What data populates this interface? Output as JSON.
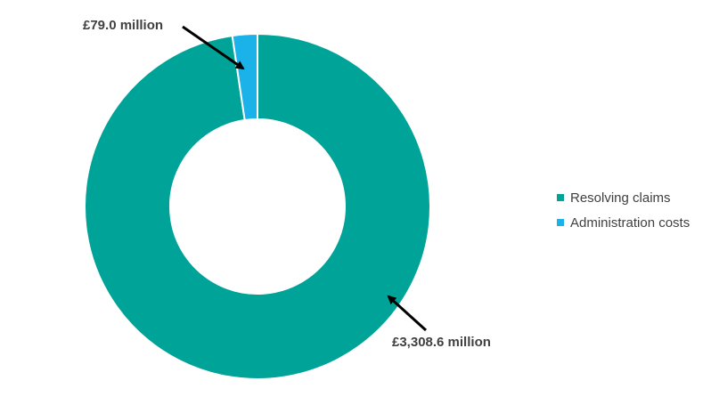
{
  "chart_data": {
    "type": "pie",
    "donut": true,
    "title": "",
    "categories": [
      "Resolving claims",
      "Administration costs"
    ],
    "values": [
      3308.6,
      79.0
    ],
    "unit": "£ million",
    "colors": [
      "#00A398",
      "#1AB2E8"
    ],
    "data_labels": [
      "£3,308.6 million",
      "£79.0 million"
    ],
    "legend": {
      "position": "right",
      "items": [
        {
          "label": "Resolving claims",
          "color": "#00A398"
        },
        {
          "label": "Administration costs",
          "color": "#1AB2E8"
        }
      ]
    }
  }
}
